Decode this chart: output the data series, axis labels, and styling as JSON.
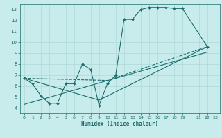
{
  "background_color": "#c8ecec",
  "grid_color": "#b0d8d8",
  "line_color": "#1a6b6b",
  "xlabel": "Humidex (Indice chaleur)",
  "xlim": [
    -0.5,
    23.5
  ],
  "ylim": [
    3.5,
    13.5
  ],
  "yticks": [
    4,
    5,
    6,
    7,
    8,
    9,
    10,
    11,
    12,
    13
  ],
  "xtick_positions": [
    0,
    1,
    2,
    3,
    4,
    5,
    6,
    7,
    8,
    9,
    10,
    11,
    12,
    13,
    14,
    15,
    16,
    17,
    18,
    19,
    21,
    22,
    23
  ],
  "xtick_labels": [
    "0",
    "1",
    "2",
    "3",
    "4",
    "5",
    "6",
    "7",
    "8",
    "9",
    "10",
    "11",
    "12",
    "13",
    "14",
    "15",
    "16",
    "17",
    "18",
    "19",
    "21",
    "22",
    "23"
  ],
  "series_main": {
    "x": [
      0,
      1,
      2,
      3,
      4,
      5,
      6,
      7,
      8,
      9,
      10,
      11,
      12,
      13,
      14,
      15,
      16,
      17,
      18,
      19,
      22
    ],
    "y": [
      6.7,
      6.2,
      5.1,
      4.4,
      4.4,
      6.2,
      6.2,
      8.0,
      7.5,
      4.2,
      6.2,
      7.0,
      12.1,
      12.1,
      13.0,
      13.2,
      13.2,
      13.2,
      13.1,
      13.1,
      9.6
    ],
    "marker": "D",
    "markersize": 2.0,
    "linewidth": 0.8
  },
  "series_line1": {
    "x": [
      0,
      10,
      22
    ],
    "y": [
      6.7,
      6.5,
      9.6
    ],
    "linewidth": 0.8,
    "linestyle": "--"
  },
  "series_line2": {
    "x": [
      0,
      9,
      22
    ],
    "y": [
      6.7,
      4.7,
      9.6
    ],
    "linewidth": 0.8,
    "linestyle": "-"
  },
  "series_line3": {
    "x": [
      0,
      22
    ],
    "y": [
      4.3,
      9.1
    ],
    "linewidth": 0.8,
    "linestyle": "-"
  }
}
